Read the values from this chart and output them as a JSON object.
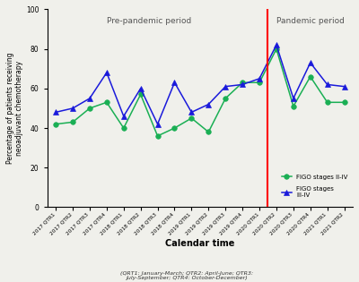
{
  "x_labels": [
    "2017 QTR1",
    "2017 QTR2",
    "2017 QTR3",
    "2017 QTR4",
    "2018 QTR1",
    "2018 QTR2",
    "2018 QTR3",
    "2018 QTR4",
    "2019 QTR1",
    "2019 QTR2",
    "2019 QTR3",
    "2019 QTR4",
    "2020 QTR1",
    "2020 QTR2",
    "2020 QTR3",
    "2020 QTR4",
    "2021 QTR1",
    "2021 QTR2"
  ],
  "green_values": [
    42,
    43,
    50,
    53,
    40,
    57,
    36,
    40,
    45,
    38,
    55,
    63,
    63,
    80,
    51,
    66,
    53,
    53
  ],
  "blue_values": [
    48,
    50,
    55,
    68,
    46,
    60,
    42,
    63,
    48,
    52,
    61,
    62,
    65,
    82,
    55,
    73,
    62,
    61
  ],
  "green_color": "#1aaf54",
  "blue_color": "#1a1adb",
  "vline_x": 12.5,
  "ylim": [
    0,
    100
  ],
  "yticks": [
    0,
    20,
    40,
    60,
    80,
    100
  ],
  "ylabel": "Percentage of patients receiving\nneoadjuvant chemotherapy",
  "xlabel": "Calendar time",
  "pre_pandemic_label": "Pre-pandemic period",
  "pandemic_label": "Pandemic period",
  "footnote": "(QRT1: January-March; QTR2: April-June; QTR3:\nJuly-September; QTR4: October-December)",
  "legend_green": "FIGO stages II-IV",
  "legend_blue": "FIGO stages\nIII-IV",
  "background_color": "#f0f0eb"
}
